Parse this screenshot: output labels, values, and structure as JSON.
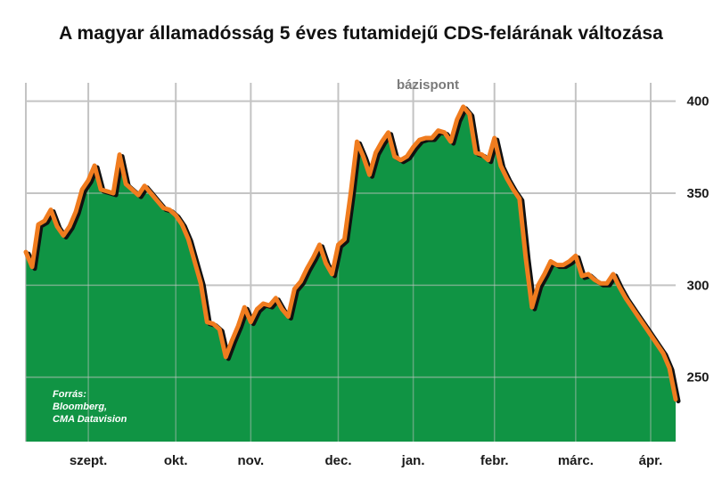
{
  "chart_data": {
    "type": "area",
    "title": "A magyar államadósság 5 éves futamidejű CDS-felárának változása",
    "ylabel": "bázispont",
    "xlabel": "",
    "ylim": [
      215,
      410
    ],
    "yticks": [
      250,
      300,
      350,
      400
    ],
    "xlim": [
      0,
      104
    ],
    "xticks": [
      {
        "label": "szept.",
        "x": 10
      },
      {
        "label": "okt.",
        "x": 24
      },
      {
        "label": "nov.",
        "x": 36
      },
      {
        "label": "dec.",
        "x": 50
      },
      {
        "label": "jan.",
        "x": 62
      },
      {
        "label": "febr.",
        "x": 75
      },
      {
        "label": "márc.",
        "x": 88
      },
      {
        "label": "ápr.",
        "x": 100
      }
    ],
    "gridlines": true,
    "series": [
      {
        "name": "CDS-felár",
        "values": [
          [
            0,
            318
          ],
          [
            1,
            310
          ],
          [
            2,
            333
          ],
          [
            3,
            335
          ],
          [
            4,
            341
          ],
          [
            5,
            332
          ],
          [
            6,
            327
          ],
          [
            7,
            332
          ],
          [
            8,
            340
          ],
          [
            9,
            352
          ],
          [
            10,
            357
          ],
          [
            11,
            365
          ],
          [
            12,
            352
          ],
          [
            13,
            351
          ],
          [
            14,
            350
          ],
          [
            15,
            371
          ],
          [
            16,
            355
          ],
          [
            17,
            352
          ],
          [
            18,
            349
          ],
          [
            19,
            354
          ],
          [
            20,
            350
          ],
          [
            21,
            346
          ],
          [
            22,
            342
          ],
          [
            23,
            341
          ],
          [
            24,
            338
          ],
          [
            25,
            333
          ],
          [
            26,
            325
          ],
          [
            27,
            313
          ],
          [
            28,
            301
          ],
          [
            29,
            280
          ],
          [
            30,
            279
          ],
          [
            31,
            276
          ],
          [
            32,
            261
          ],
          [
            33,
            270
          ],
          [
            34,
            278
          ],
          [
            35,
            288
          ],
          [
            36,
            280
          ],
          [
            37,
            287
          ],
          [
            38,
            290
          ],
          [
            39,
            289
          ],
          [
            40,
            293
          ],
          [
            41,
            287
          ],
          [
            42,
            283
          ],
          [
            43,
            298
          ],
          [
            44,
            302
          ],
          [
            45,
            309
          ],
          [
            46,
            315
          ],
          [
            47,
            322
          ],
          [
            48,
            312
          ],
          [
            49,
            306
          ],
          [
            50,
            322
          ],
          [
            51,
            325
          ],
          [
            52,
            350
          ],
          [
            53,
            378
          ],
          [
            54,
            370
          ],
          [
            55,
            360
          ],
          [
            56,
            372
          ],
          [
            57,
            378
          ],
          [
            58,
            383
          ],
          [
            59,
            370
          ],
          [
            60,
            368
          ],
          [
            61,
            370
          ],
          [
            62,
            375
          ],
          [
            63,
            379
          ],
          [
            64,
            380
          ],
          [
            65,
            380
          ],
          [
            66,
            384
          ],
          [
            67,
            383
          ],
          [
            68,
            378
          ],
          [
            69,
            390
          ],
          [
            70,
            397
          ],
          [
            71,
            393
          ],
          [
            72,
            372
          ],
          [
            73,
            371
          ],
          [
            74,
            368
          ],
          [
            75,
            380
          ],
          [
            76,
            365
          ],
          [
            77,
            358
          ],
          [
            78,
            352
          ],
          [
            79,
            347
          ],
          [
            80,
            315
          ],
          [
            81,
            288
          ],
          [
            82,
            300
          ],
          [
            83,
            306
          ],
          [
            84,
            313
          ],
          [
            85,
            311
          ],
          [
            86,
            311
          ],
          [
            87,
            313
          ],
          [
            88,
            316
          ],
          [
            89,
            305
          ],
          [
            90,
            306
          ],
          [
            91,
            303
          ],
          [
            92,
            301
          ],
          [
            93,
            301
          ],
          [
            94,
            306
          ],
          [
            95,
            299
          ],
          [
            96,
            293
          ],
          [
            97,
            288
          ],
          [
            98,
            283
          ],
          [
            99,
            278
          ],
          [
            100,
            273
          ],
          [
            101,
            268
          ],
          [
            102,
            263
          ],
          [
            103,
            255
          ],
          [
            104,
            238
          ]
        ]
      }
    ],
    "legend": "none",
    "colors": {
      "fill": "#109444",
      "line": "#f07c1f",
      "shadow": "#111111",
      "grid": "#c4c4c4"
    },
    "annotations": [
      "Forrás:",
      "Bloomberg,",
      "CMA Datavision"
    ]
  }
}
